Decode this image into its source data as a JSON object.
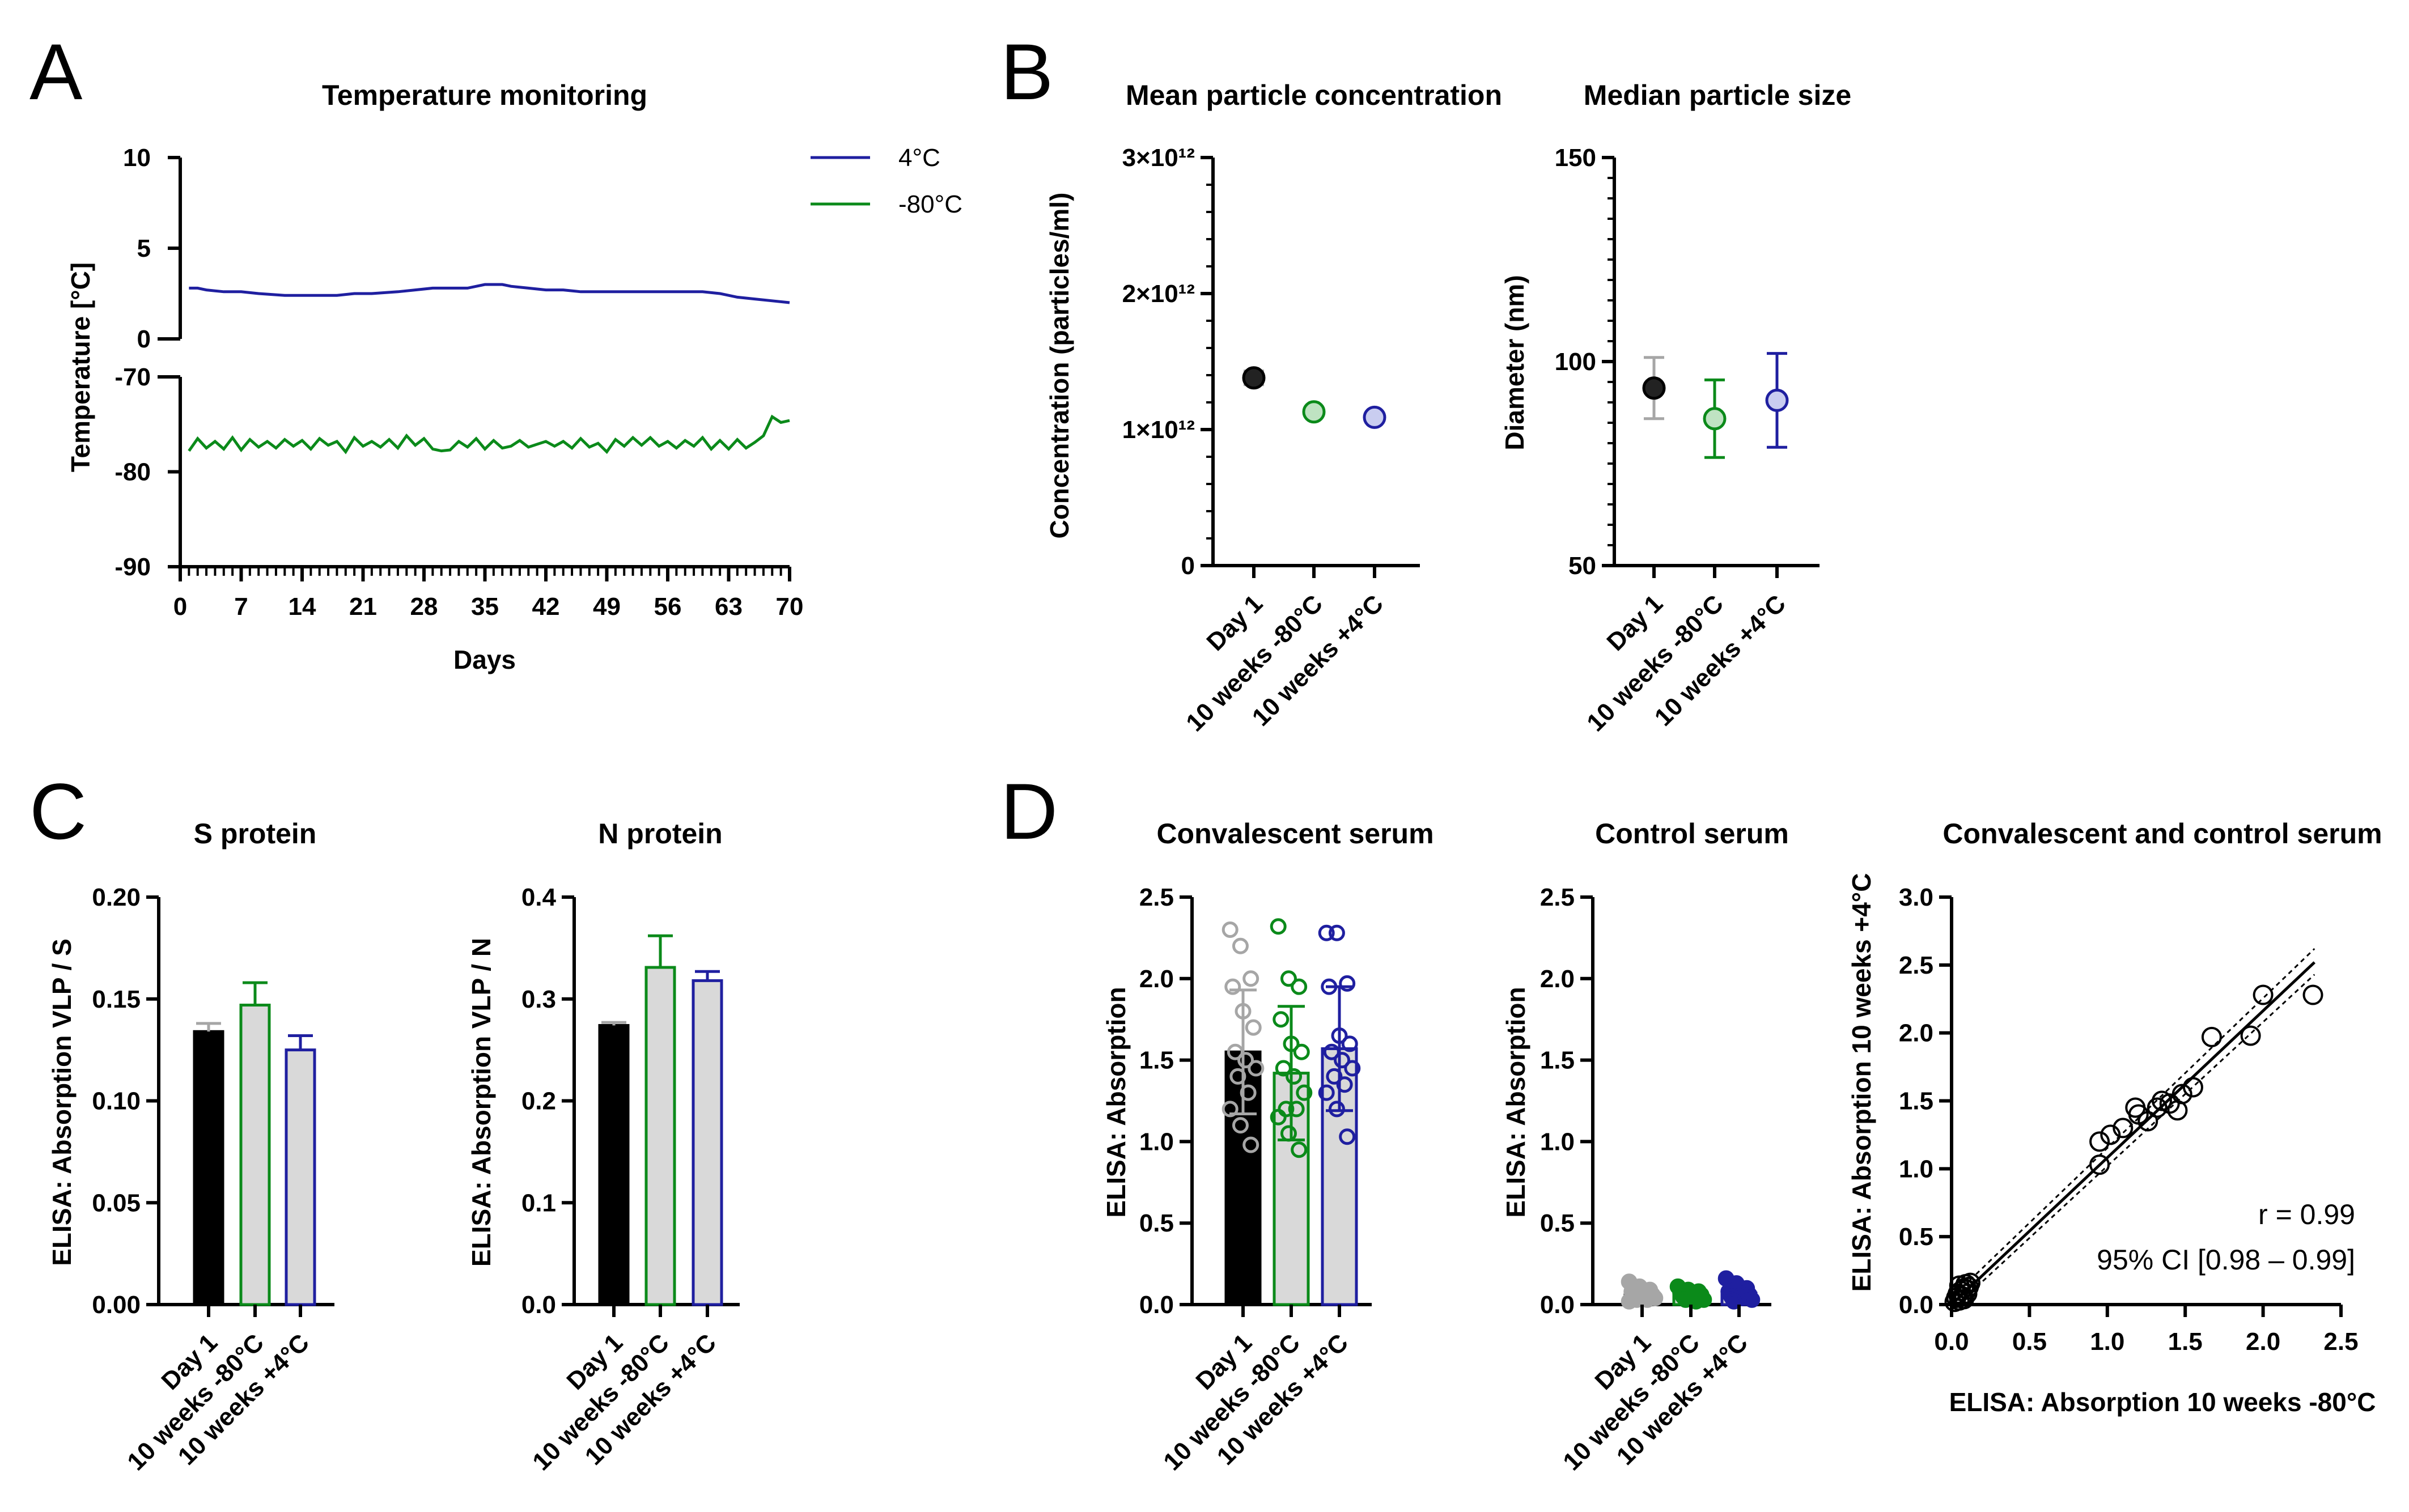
{
  "panel_labels": [
    "A",
    "B",
    "C",
    "D"
  ],
  "colors": {
    "day1": "#000000",
    "day1_light": "#a6a6a6",
    "m80": "#0b8a1a",
    "p4": "#1f1fa0",
    "fill_grey": "#d9d9d9",
    "fill_light": "#dcdcdc"
  },
  "chart_data": [
    {
      "id": "A",
      "type": "line",
      "title": "Temperature monitoring",
      "xlabel": "Days",
      "ylabel": "Temperature [°C]",
      "xlim": [
        0,
        70
      ],
      "x_ticks": [
        "0",
        "7",
        "14",
        "21",
        "28",
        "35",
        "42",
        "49",
        "56",
        "63",
        "70"
      ],
      "y_upper": {
        "ylim": [
          0,
          10
        ],
        "ticks": [
          "10",
          "5",
          "0"
        ]
      },
      "y_lower": {
        "ylim": [
          -90,
          -70
        ],
        "ticks": [
          "-70",
          "-80",
          "-90"
        ]
      },
      "legend": [
        "4°C",
        "-80°C"
      ],
      "series": [
        {
          "name": "4°C",
          "x": [
            1,
            2,
            3,
            5,
            7,
            9,
            12,
            14,
            16,
            18,
            20,
            22,
            25,
            27,
            29,
            33,
            35,
            37,
            38,
            40,
            42,
            44,
            46,
            48,
            50,
            52,
            54,
            56,
            58,
            60,
            62,
            64,
            66,
            68,
            70
          ],
          "y": [
            2.8,
            2.8,
            2.7,
            2.6,
            2.6,
            2.5,
            2.4,
            2.4,
            2.4,
            2.4,
            2.5,
            2.5,
            2.6,
            2.7,
            2.8,
            2.8,
            3.0,
            3.0,
            2.9,
            2.8,
            2.7,
            2.7,
            2.6,
            2.6,
            2.6,
            2.6,
            2.6,
            2.6,
            2.6,
            2.6,
            2.5,
            2.3,
            2.2,
            2.1,
            2.0
          ]
        },
        {
          "name": "-80°C",
          "x": [
            1,
            2,
            3,
            4,
            5,
            6,
            7,
            8,
            9,
            10,
            11,
            12,
            13,
            14,
            15,
            16,
            17,
            18,
            19,
            20,
            21,
            22,
            23,
            24,
            25,
            26,
            27,
            28,
            29,
            30,
            31,
            32,
            33,
            34,
            35,
            36,
            37,
            38,
            39,
            40,
            41,
            42,
            43,
            44,
            45,
            46,
            47,
            48,
            49,
            50,
            51,
            52,
            53,
            54,
            55,
            56,
            57,
            58,
            59,
            60,
            61,
            62,
            63,
            64,
            65,
            66,
            67,
            68,
            69,
            70
          ],
          "y": [
            -77.8,
            -76.5,
            -77.5,
            -76.8,
            -77.6,
            -76.4,
            -77.7,
            -76.6,
            -77.4,
            -76.8,
            -77.5,
            -76.6,
            -77.3,
            -76.7,
            -77.6,
            -76.5,
            -77.2,
            -76.8,
            -77.9,
            -76.4,
            -77.3,
            -76.8,
            -77.4,
            -76.6,
            -77.5,
            -76.2,
            -77.2,
            -76.5,
            -77.6,
            -77.8,
            -77.7,
            -76.8,
            -77.4,
            -76.5,
            -77.6,
            -76.7,
            -77.5,
            -77.3,
            -76.7,
            -77.4,
            -77.1,
            -76.8,
            -77.3,
            -76.8,
            -77.5,
            -76.5,
            -77.4,
            -77.0,
            -77.9,
            -76.6,
            -77.3,
            -76.4,
            -77.2,
            -76.4,
            -77.3,
            -76.8,
            -77.5,
            -76.7,
            -77.3,
            -76.4,
            -77.6,
            -76.7,
            -77.6,
            -76.6,
            -77.5,
            -76.9,
            -76.2,
            -74.2,
            -74.8,
            -74.6
          ]
        }
      ]
    },
    {
      "id": "B1",
      "type": "scatter",
      "title": "Mean particle concentration",
      "ylabel": "Concentration (particles/ml)",
      "ylim": [
        0,
        3000000000000.0
      ],
      "y_ticks": [
        {
          "v": 0,
          "t": "0"
        },
        {
          "v": 1000000000000.0,
          "t": "1×10¹²"
        },
        {
          "v": 2000000000000.0,
          "t": "2×10¹²"
        },
        {
          "v": 3000000000000.0,
          "t": "3×10¹²"
        }
      ],
      "categories": [
        "Day 1",
        "10 weeks -80°C",
        "10 weeks +4°C"
      ],
      "values": [
        1380000000000.0,
        1130000000000.0,
        1090000000000.0
      ],
      "errors": [
        50000000000.0,
        30000000000.0,
        30000000000.0
      ]
    },
    {
      "id": "B2",
      "type": "scatter",
      "title": "Median particle size",
      "ylabel": "Diameter (nm)",
      "ylim": [
        50,
        150
      ],
      "y_ticks": [
        {
          "v": 50,
          "t": "50"
        },
        {
          "v": 100,
          "t": "100"
        },
        {
          "v": 150,
          "t": "150"
        }
      ],
      "categories": [
        "Day 1",
        "10 weeks -80°C",
        "10 weeks +4°C"
      ],
      "values": [
        93.5,
        86.0,
        90.5
      ],
      "errors": [
        7.5,
        9.5,
        11.5
      ]
    },
    {
      "id": "C1",
      "type": "bar",
      "title": "S protein",
      "ylabel": "ELISA: Absorption VLP / S",
      "ylim": [
        0,
        0.2
      ],
      "y_ticks": [
        {
          "v": 0,
          "t": "0.00"
        },
        {
          "v": 0.05,
          "t": "0.05"
        },
        {
          "v": 0.1,
          "t": "0.10"
        },
        {
          "v": 0.15,
          "t": "0.15"
        },
        {
          "v": 0.2,
          "t": "0.20"
        }
      ],
      "categories": [
        "Day 1",
        "10 weeks -80°C",
        "10 weeks +4°C"
      ],
      "values": [
        0.134,
        0.147,
        0.125
      ],
      "errors": [
        0.004,
        0.011,
        0.007
      ]
    },
    {
      "id": "C2",
      "type": "bar",
      "title": "N protein",
      "ylabel": "ELISA: Absorption VLP / N",
      "ylim": [
        0,
        0.4
      ],
      "y_ticks": [
        {
          "v": 0,
          "t": "0.0"
        },
        {
          "v": 0.1,
          "t": "0.1"
        },
        {
          "v": 0.2,
          "t": "0.2"
        },
        {
          "v": 0.3,
          "t": "0.3"
        },
        {
          "v": 0.4,
          "t": "0.4"
        }
      ],
      "categories": [
        "Day 1",
        "10 weeks -80°C",
        "10 weeks +4°C"
      ],
      "values": [
        0.274,
        0.331,
        0.318
      ],
      "errors": [
        0.003,
        0.031,
        0.009
      ]
    },
    {
      "id": "D1",
      "type": "bar",
      "title": "Convalescent serum",
      "ylabel": "ELISA: Absorption",
      "ylim": [
        0,
        2.5
      ],
      "y_ticks": [
        {
          "v": 0,
          "t": "0.0"
        },
        {
          "v": 0.5,
          "t": "0.5"
        },
        {
          "v": 1,
          "t": "1.0"
        },
        {
          "v": 1.5,
          "t": "1.5"
        },
        {
          "v": 2,
          "t": "2.0"
        },
        {
          "v": 2.5,
          "t": "2.5"
        }
      ],
      "categories": [
        "Day 1",
        "10 weeks -80°C",
        "10 weeks +4°C"
      ],
      "values": [
        1.55,
        1.42,
        1.57
      ],
      "errors": [
        0.38,
        0.41,
        0.38
      ],
      "points": [
        [
          2.3,
          2.2,
          2.0,
          1.95,
          1.8,
          1.7,
          1.55,
          1.5,
          1.45,
          1.4,
          1.3,
          1.2,
          1.1,
          0.98
        ],
        [
          2.32,
          2.0,
          1.95,
          1.75,
          1.6,
          1.55,
          1.45,
          1.4,
          1.3,
          1.2,
          1.2,
          1.15,
          1.05,
          0.95
        ],
        [
          2.28,
          2.28,
          1.97,
          1.95,
          1.65,
          1.6,
          1.55,
          1.5,
          1.45,
          1.4,
          1.35,
          1.3,
          1.2,
          1.03
        ]
      ]
    },
    {
      "id": "D2",
      "type": "bar",
      "title": "Control serum",
      "ylabel": "ELISA: Absorption",
      "ylim": [
        0,
        2.5
      ],
      "y_ticks": [
        {
          "v": 0,
          "t": "0.0"
        },
        {
          "v": 0.5,
          "t": "0.5"
        },
        {
          "v": 1,
          "t": "1.0"
        },
        {
          "v": 1.5,
          "t": "1.5"
        },
        {
          "v": 2,
          "t": "2.0"
        },
        {
          "v": 2.5,
          "t": "2.5"
        }
      ],
      "categories": [
        "Day 1",
        "10 weeks -80°C",
        "10 weeks +4°C"
      ],
      "values": [
        0.07,
        0.06,
        0.07
      ],
      "errors": [
        0.04,
        0.03,
        0.05
      ],
      "points": [
        [
          0.14,
          0.11,
          0.09,
          0.08,
          0.07,
          0.06,
          0.05,
          0.04,
          0.04,
          0.03,
          0.03,
          0.02
        ],
        [
          0.11,
          0.09,
          0.08,
          0.07,
          0.06,
          0.06,
          0.05,
          0.04,
          0.03,
          0.03,
          0.02
        ],
        [
          0.16,
          0.13,
          0.1,
          0.08,
          0.07,
          0.06,
          0.05,
          0.04,
          0.03,
          0.02
        ]
      ]
    },
    {
      "id": "D3",
      "type": "scatter",
      "title": "Convalescent and control serum",
      "xlabel": "ELISA: Absorption 10 weeks -80°C",
      "ylabel": "ELISA: Absorption 10 weeks +4°C",
      "xlim": [
        0,
        2.5
      ],
      "ylim": [
        0,
        3.0
      ],
      "x_ticks": [
        {
          "v": 0,
          "t": "0.0"
        },
        {
          "v": 0.5,
          "t": "0.5"
        },
        {
          "v": 1,
          "t": "1.0"
        },
        {
          "v": 1.5,
          "t": "1.5"
        },
        {
          "v": 2,
          "t": "2.0"
        },
        {
          "v": 2.5,
          "t": "2.5"
        }
      ],
      "y_ticks": [
        {
          "v": 0,
          "t": "0.0"
        },
        {
          "v": 0.5,
          "t": "0.5"
        },
        {
          "v": 1,
          "t": "1.0"
        },
        {
          "v": 1.5,
          "t": "1.5"
        },
        {
          "v": 2,
          "t": "2.0"
        },
        {
          "v": 2.5,
          "t": "2.5"
        },
        {
          "v": 3,
          "t": "3.0"
        }
      ],
      "points": [
        [
          0.95,
          1.03
        ],
        [
          0.95,
          1.2
        ],
        [
          1.02,
          1.25
        ],
        [
          1.1,
          1.3
        ],
        [
          1.18,
          1.45
        ],
        [
          1.2,
          1.4
        ],
        [
          1.26,
          1.35
        ],
        [
          1.32,
          1.45
        ],
        [
          1.35,
          1.5
        ],
        [
          1.4,
          1.48
        ],
        [
          1.45,
          1.43
        ],
        [
          1.48,
          1.55
        ],
        [
          1.55,
          1.6
        ],
        [
          1.67,
          1.97
        ],
        [
          1.92,
          1.98
        ],
        [
          2.0,
          2.28
        ],
        [
          2.32,
          2.28
        ],
        [
          0.02,
          0.02
        ],
        [
          0.03,
          0.05
        ],
        [
          0.04,
          0.08
        ],
        [
          0.05,
          0.03
        ],
        [
          0.06,
          0.1
        ],
        [
          0.07,
          0.06
        ],
        [
          0.08,
          0.12
        ],
        [
          0.09,
          0.15
        ],
        [
          0.1,
          0.08
        ],
        [
          0.11,
          0.13
        ],
        [
          0.12,
          0.16
        ],
        [
          0.08,
          0.04
        ],
        [
          0.05,
          0.14
        ],
        [
          0.1,
          0.11
        ]
      ],
      "fit": {
        "x": [
          0,
          2.33
        ],
        "y": [
          0.0,
          2.52
        ]
      },
      "ci_band": {
        "upper": [
          0.05,
          2.62
        ],
        "lower": [
          -0.04,
          2.43
        ]
      },
      "annotations": [
        "r = 0.99",
        "95% CI [0.98 – 0.99]"
      ]
    }
  ]
}
